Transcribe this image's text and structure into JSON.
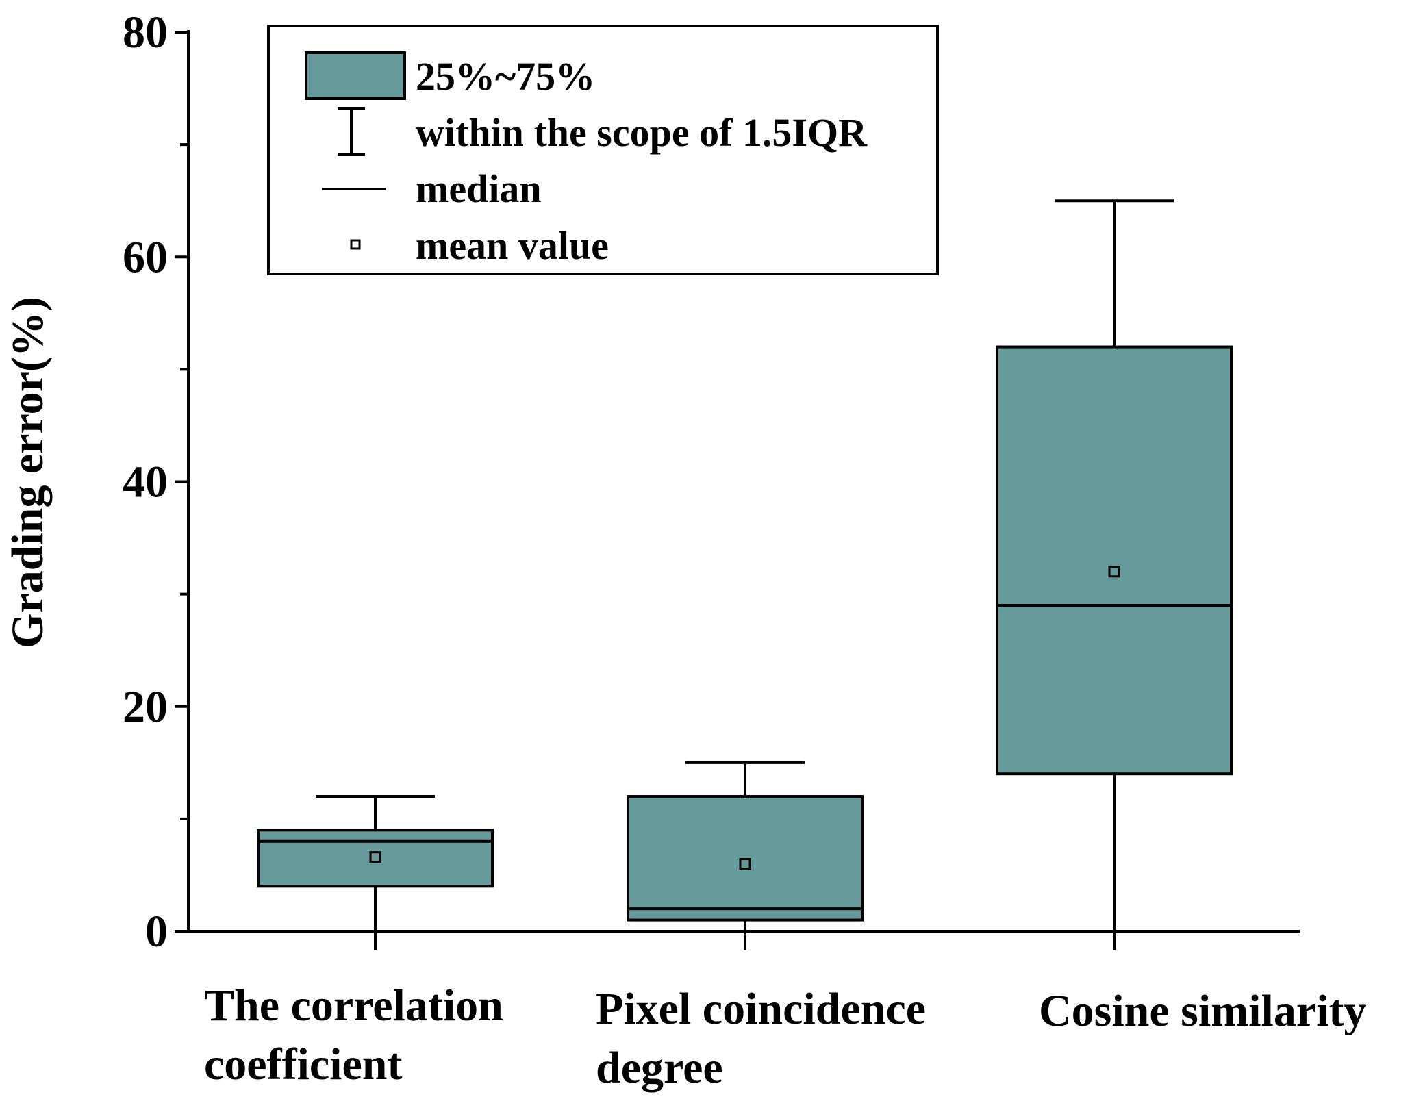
{
  "chart_data": {
    "type": "box",
    "ylabel": "Grading error(%)",
    "ylim": [
      0,
      80
    ],
    "yticks": [
      "0",
      "20",
      "40",
      "60",
      "80"
    ],
    "minor_tick_step": 10,
    "categories": [
      {
        "name": "The correlation coefficient",
        "lines": [
          "The correlation",
          "coefficient"
        ],
        "whisker_low": -2,
        "q1": 4,
        "median": 8,
        "q3": 9,
        "whisker_high": 12,
        "mean": 6.6
      },
      {
        "name": "Pixel coincidence degree",
        "lines": [
          "Pixel coincidence",
          "degree"
        ],
        "whisker_low": -2,
        "q1": 1,
        "median": 2,
        "q3": 12,
        "whisker_high": 15,
        "mean": 6
      },
      {
        "name": "Cosine similarity",
        "lines": [
          "Cosine similarity"
        ],
        "whisker_low": -2,
        "q1": 14,
        "median": 29,
        "q3": 52,
        "whisker_high": 65,
        "mean": 32
      }
    ],
    "legend": {
      "position": "top-left",
      "box": "25%~75%",
      "whisker": "within the scope of 1.5IQR",
      "median": "median",
      "mean": "mean value"
    },
    "colors": {
      "box_fill": "#669999",
      "stroke": "#000000",
      "background": "#ffffff"
    }
  }
}
